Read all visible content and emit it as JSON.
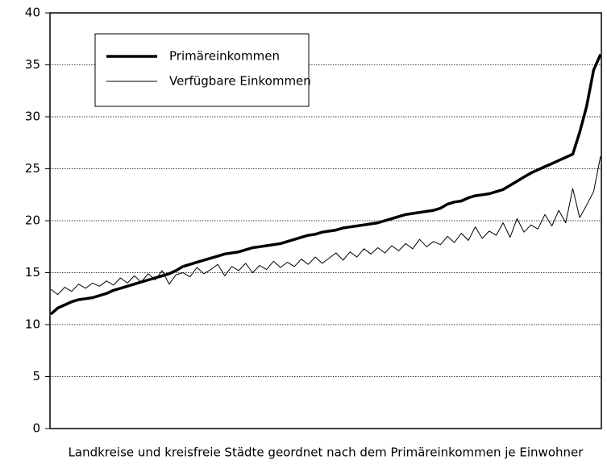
{
  "chart_data": {
    "type": "line",
    "x_label": "Landkreise und kreisfreie Städte geordnet nach dem Primäreinkommen je Einwohner",
    "ylim": [
      0,
      40
    ],
    "yticks": [
      0,
      5,
      10,
      15,
      20,
      25,
      30,
      35,
      40
    ],
    "grid": true,
    "legend": "top-left",
    "series": [
      {
        "name": "Primäreinkommen",
        "color": "#000000",
        "values": [
          11.0,
          11.6,
          11.9,
          12.2,
          12.4,
          12.5,
          12.6,
          12.8,
          13.0,
          13.3,
          13.5,
          13.7,
          13.9,
          14.1,
          14.3,
          14.5,
          14.7,
          14.9,
          15.2,
          15.6,
          15.8,
          16.0,
          16.2,
          16.4,
          16.6,
          16.8,
          16.9,
          17.0,
          17.2,
          17.4,
          17.5,
          17.6,
          17.7,
          17.8,
          18.0,
          18.2,
          18.4,
          18.6,
          18.7,
          18.9,
          19.0,
          19.1,
          19.3,
          19.4,
          19.5,
          19.6,
          19.7,
          19.8,
          20.0,
          20.2,
          20.4,
          20.6,
          20.7,
          20.8,
          20.9,
          21.0,
          21.2,
          21.6,
          21.8,
          21.9,
          22.2,
          22.4,
          22.5,
          22.6,
          22.8,
          23.0,
          23.4,
          23.8,
          24.2,
          24.6,
          24.9,
          25.2,
          25.5,
          25.8,
          26.1,
          26.4,
          28.5,
          31.0,
          34.5,
          36.0
        ]
      },
      {
        "name": "Verfügbare Einkommen",
        "color": "#000000",
        "values": [
          13.4,
          12.9,
          13.6,
          13.2,
          13.9,
          13.5,
          14.0,
          13.7,
          14.2,
          13.8,
          14.5,
          14.0,
          14.7,
          14.1,
          14.9,
          14.3,
          15.2,
          13.9,
          14.8,
          15.0,
          14.6,
          15.5,
          14.9,
          15.3,
          15.8,
          14.7,
          15.6,
          15.2,
          15.9,
          15.0,
          15.7,
          15.3,
          16.1,
          15.5,
          16.0,
          15.6,
          16.3,
          15.8,
          16.5,
          15.9,
          16.4,
          16.9,
          16.2,
          17.0,
          16.5,
          17.3,
          16.8,
          17.4,
          16.9,
          17.6,
          17.1,
          17.8,
          17.3,
          18.2,
          17.5,
          18.0,
          17.7,
          18.5,
          17.9,
          18.8,
          18.1,
          19.4,
          18.3,
          19.0,
          18.6,
          19.8,
          18.4,
          20.2,
          18.9,
          19.6,
          19.2,
          20.6,
          19.5,
          21.0,
          19.8,
          23.1,
          20.3,
          21.5,
          22.8,
          26.2
        ]
      }
    ]
  }
}
